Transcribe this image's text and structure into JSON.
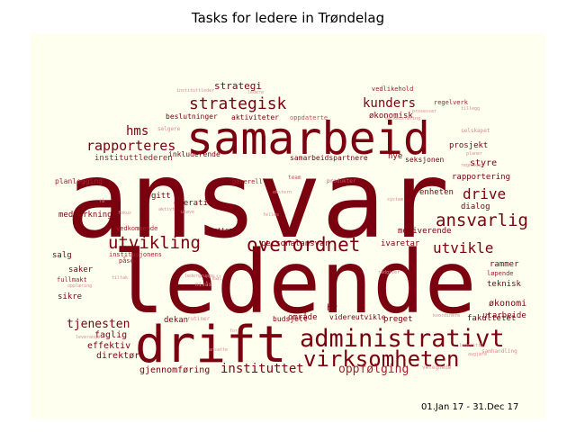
{
  "title": "Tasks for ledere in Trøndelag",
  "period": "01.Jan 17 - 31.Dec 17",
  "colors": {
    "dark": "#7a0010",
    "mid": "#a3202e",
    "light": "#c8505c",
    "faint": "#d98a92"
  },
  "words": [
    {
      "text": "ansvar",
      "tone": "dark"
    },
    {
      "text": "ledende",
      "tone": "dark"
    },
    {
      "text": "samarbeid",
      "tone": "dark"
    },
    {
      "text": "drift",
      "tone": "dark"
    },
    {
      "text": "administrativt",
      "tone": "dark"
    },
    {
      "text": "virksomheten",
      "tone": "dark"
    },
    {
      "text": "overordnet",
      "tone": "dark"
    },
    {
      "text": "utvikling",
      "tone": "dark"
    },
    {
      "text": "strategisk",
      "tone": "dark"
    },
    {
      "text": "ansvarlig",
      "tone": "dark"
    },
    {
      "text": "utvikle",
      "tone": "dark"
    },
    {
      "text": "drive",
      "tone": "dark"
    },
    {
      "text": "rapporteres",
      "tone": "dark"
    },
    {
      "text": "hms",
      "tone": "dark"
    },
    {
      "text": "kunders",
      "tone": "dark"
    },
    {
      "text": "instituttet",
      "tone": "dark"
    },
    {
      "text": "oppfølging",
      "tone": "mid"
    },
    {
      "text": "tjenesten",
      "tone": "dark"
    },
    {
      "text": "strategi",
      "tone": "dark"
    },
    {
      "text": "økonomisk",
      "tone": "dark"
    },
    {
      "text": "prosjekt",
      "tone": "dark"
    },
    {
      "text": "styre",
      "tone": "dark"
    },
    {
      "text": "rapportering",
      "tone": "dark"
    },
    {
      "text": "enheten",
      "tone": "dark"
    },
    {
      "text": "dialog",
      "tone": "dark"
    },
    {
      "text": "motiverende",
      "tone": "dark"
    },
    {
      "text": "ivaretar",
      "tone": "dark"
    },
    {
      "text": "personalansvar",
      "tone": "dark"
    },
    {
      "text": "samarbeidspartnere",
      "tone": "dark"
    },
    {
      "text": "nye",
      "tone": "dark"
    },
    {
      "text": "seksjonen",
      "tone": "dark"
    },
    {
      "text": "inkluderende",
      "tone": "dark"
    },
    {
      "text": "instituttlederen",
      "tone": "mid"
    },
    {
      "text": "beslutninger",
      "tone": "dark"
    },
    {
      "text": "aktiviteter",
      "tone": "dark"
    },
    {
      "text": "oppdaterte",
      "tone": "light"
    },
    {
      "text": "gjennomføring",
      "tone": "dark"
    },
    {
      "text": "effektiv",
      "tone": "dark"
    },
    {
      "text": "direktør",
      "tone": "dark"
    },
    {
      "text": "faglig",
      "tone": "dark"
    },
    {
      "text": "økonomi",
      "tone": "dark"
    },
    {
      "text": "teknisk",
      "tone": "dark"
    },
    {
      "text": "utarbeide",
      "tone": "dark"
    },
    {
      "text": "rammer",
      "tone": "dark"
    },
    {
      "text": "løpende",
      "tone": "mid"
    },
    {
      "text": "fakultetet",
      "tone": "dark"
    },
    {
      "text": "dekan",
      "tone": "dark"
    },
    {
      "text": "budsjett",
      "tone": "dark"
    },
    {
      "text": "område",
      "tone": "dark"
    },
    {
      "text": "videreutvikle",
      "tone": "dark"
    },
    {
      "text": "preget",
      "tone": "dark"
    },
    {
      "text": "hr",
      "tone": "dark"
    },
    {
      "text": "planlegging",
      "tone": "mid"
    },
    {
      "text": "gitt",
      "tone": "dark"
    },
    {
      "text": "operativ",
      "tone": "dark"
    },
    {
      "text": "generell",
      "tone": "mid"
    },
    {
      "text": "medvirkning",
      "tone": "dark"
    },
    {
      "text": "salg",
      "tone": "dark"
    },
    {
      "text": "saker",
      "tone": "dark"
    },
    {
      "text": "fullmakt",
      "tone": "mid"
    },
    {
      "text": "sikre",
      "tone": "dark"
    },
    {
      "text": "støttende",
      "tone": "dark"
    },
    {
      "text": "vedkommende",
      "tone": "mid"
    },
    {
      "text": "institusjonens",
      "tone": "mid"
    },
    {
      "text": "påse",
      "tone": "mid"
    },
    {
      "text": "vedlikehold",
      "tone": "mid"
    },
    {
      "text": "regelverk",
      "tone": "mid"
    },
    {
      "text": "tillegg",
      "tone": "faint"
    },
    {
      "text": "prosesser",
      "tone": "faint"
    },
    {
      "text": "markedsføring",
      "tone": "faint"
    },
    {
      "text": "selskapet",
      "tone": "faint"
    },
    {
      "text": "planer",
      "tone": "faint"
    },
    {
      "text": "regnskap",
      "tone": "faint"
    },
    {
      "text": "produkter",
      "tone": "light"
    },
    {
      "text": "team",
      "tone": "light"
    },
    {
      "text": "ekstern",
      "tone": "faint"
    },
    {
      "text": "system",
      "tone": "faint"
    },
    {
      "text": "felles",
      "tone": "faint"
    },
    {
      "text": "aktivt",
      "tone": "faint"
    },
    {
      "text": "utøve",
      "tone": "faint"
    },
    {
      "text": "fokus",
      "tone": "faint"
    },
    {
      "text": "rådgiver",
      "tone": "faint"
    },
    {
      "text": "mål",
      "tone": "faint"
    },
    {
      "text": "nivås",
      "tone": "faint"
    },
    {
      "text": "tiltak",
      "tone": "faint"
    },
    {
      "text": "rutiner",
      "tone": "faint"
    },
    {
      "text": "leverandør",
      "tone": "faint"
    },
    {
      "text": "opplæring",
      "tone": "faint"
    },
    {
      "text": "koordinere",
      "tone": "faint"
    },
    {
      "text": "lederstil",
      "tone": "faint"
    },
    {
      "text": "avgjøre",
      "tone": "faint"
    },
    {
      "text": "velegnede",
      "tone": "faint"
    },
    {
      "text": "samhandling",
      "tone": "faint"
    },
    {
      "text": "ansatte",
      "tone": "faint"
    },
    {
      "text": "for",
      "tone": "faint"
    },
    {
      "text": "ledergruppe",
      "tone": "faint"
    },
    {
      "text": "instituttleder",
      "tone": "faint"
    },
    {
      "text": "ledere",
      "tone": "faint"
    },
    {
      "text": "selgere",
      "tone": "faint"
    },
    {
      "text": "få",
      "tone": "faint"
    }
  ]
}
